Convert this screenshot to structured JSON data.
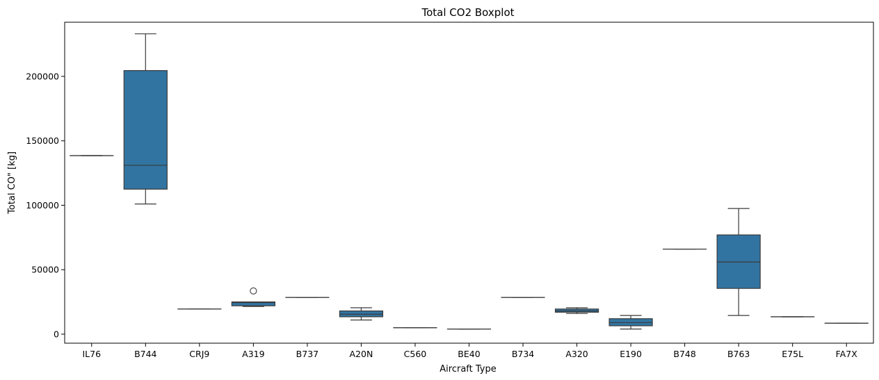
{
  "chart_data": {
    "type": "boxplot",
    "title": "Total CO2 Boxplot",
    "xlabel": "Aircraft Type",
    "ylabel": "Total CO\" [kg]",
    "ylim": [
      -7000,
      242000
    ],
    "yticks": [
      0,
      50000,
      100000,
      150000,
      200000
    ],
    "ytick_labels": [
      "0",
      "50000",
      "100000",
      "150000",
      "200000"
    ],
    "grid": false,
    "box_color": "#3274a1",
    "line_color": "#3a3a3a",
    "categories": [
      "IL76",
      "B744",
      "CRJ9",
      "A319",
      "B737",
      "A20N",
      "C560",
      "BE40",
      "B734",
      "A320",
      "E190",
      "B748",
      "B763",
      "E75L",
      "FA7X"
    ],
    "boxes": [
      {
        "category": "IL76",
        "whisker_low": 138500,
        "q1": 138500,
        "median": 138500,
        "q3": 138500,
        "whisker_high": 138500,
        "outliers": []
      },
      {
        "category": "B744",
        "whisker_low": 101000,
        "q1": 112500,
        "median": 131000,
        "q3": 204500,
        "whisker_high": 233000,
        "outliers": []
      },
      {
        "category": "CRJ9",
        "whisker_low": 19500,
        "q1": 19500,
        "median": 19500,
        "q3": 19500,
        "whisker_high": 19500,
        "outliers": []
      },
      {
        "category": "A319",
        "whisker_low": 21500,
        "q1": 22000,
        "median": 24500,
        "q3": 25000,
        "whisker_high": 25000,
        "outliers": [
          33500
        ]
      },
      {
        "category": "B737",
        "whisker_low": 28500,
        "q1": 28500,
        "median": 28500,
        "q3": 28500,
        "whisker_high": 28500,
        "outliers": []
      },
      {
        "category": "A20N",
        "whisker_low": 11000,
        "q1": 13500,
        "median": 15500,
        "q3": 18000,
        "whisker_high": 20500,
        "outliers": []
      },
      {
        "category": "C560",
        "whisker_low": 5000,
        "q1": 5000,
        "median": 5000,
        "q3": 5000,
        "whisker_high": 5000,
        "outliers": []
      },
      {
        "category": "BE40",
        "whisker_low": 4000,
        "q1": 4000,
        "median": 4000,
        "q3": 4000,
        "whisker_high": 4000,
        "outliers": []
      },
      {
        "category": "B734",
        "whisker_low": 28500,
        "q1": 28500,
        "median": 28500,
        "q3": 28500,
        "whisker_high": 28500,
        "outliers": []
      },
      {
        "category": "A320",
        "whisker_low": 16000,
        "q1": 17000,
        "median": 18000,
        "q3": 19500,
        "whisker_high": 20500,
        "outliers": []
      },
      {
        "category": "E190",
        "whisker_low": 4000,
        "q1": 6500,
        "median": 9000,
        "q3": 12000,
        "whisker_high": 14500,
        "outliers": []
      },
      {
        "category": "B748",
        "whisker_low": 66000,
        "q1": 66000,
        "median": 66000,
        "q3": 66000,
        "whisker_high": 66000,
        "outliers": []
      },
      {
        "category": "B763",
        "whisker_low": 14500,
        "q1": 35500,
        "median": 56000,
        "q3": 77000,
        "whisker_high": 97500,
        "outliers": []
      },
      {
        "category": "E75L",
        "whisker_low": 13500,
        "q1": 13500,
        "median": 13500,
        "q3": 13500,
        "whisker_high": 13500,
        "outliers": []
      },
      {
        "category": "FA7X",
        "whisker_low": 8500,
        "q1": 8500,
        "median": 8500,
        "q3": 8500,
        "whisker_high": 8500,
        "outliers": []
      }
    ]
  }
}
